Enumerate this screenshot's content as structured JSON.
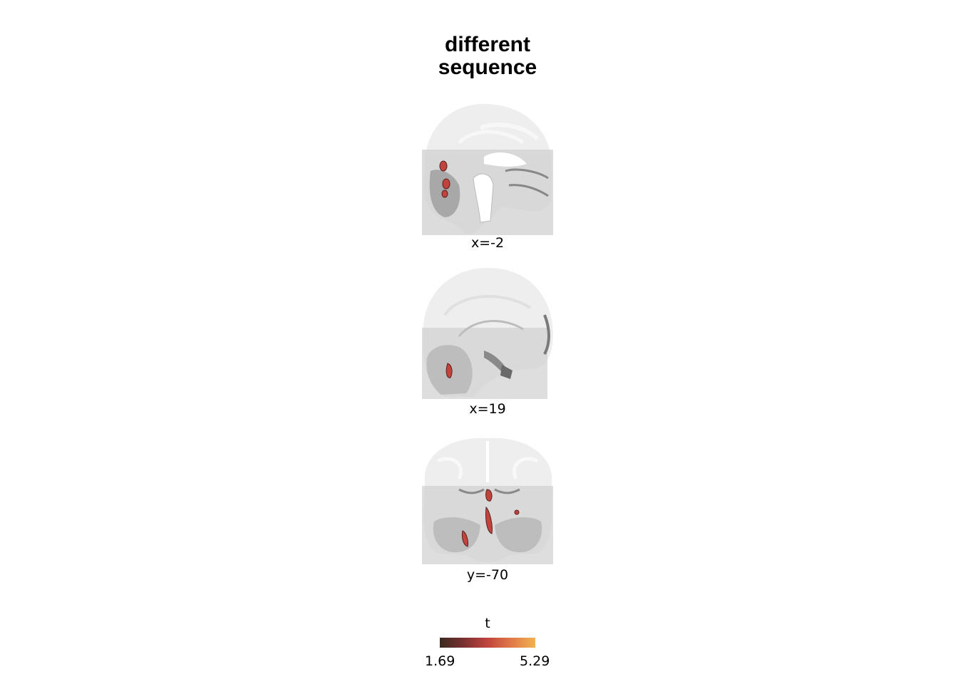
{
  "title": {
    "line1": "different",
    "line2": "sequence"
  },
  "slices": [
    {
      "label": "x=-2"
    },
    {
      "label": "x=19"
    },
    {
      "label": "y=-70"
    }
  ],
  "colorbar": {
    "label": "t",
    "min": "1.69",
    "max": "5.29",
    "colors": [
      "#3a2a1e",
      "#7a3030",
      "#c0443c",
      "#e07a4a",
      "#f0b250"
    ]
  },
  "colors": {
    "brain_light": "#eeeeee",
    "brain_mid": "#d4d4d4",
    "brain_dark": "#8a8a8a",
    "blob": "#c0443c"
  }
}
